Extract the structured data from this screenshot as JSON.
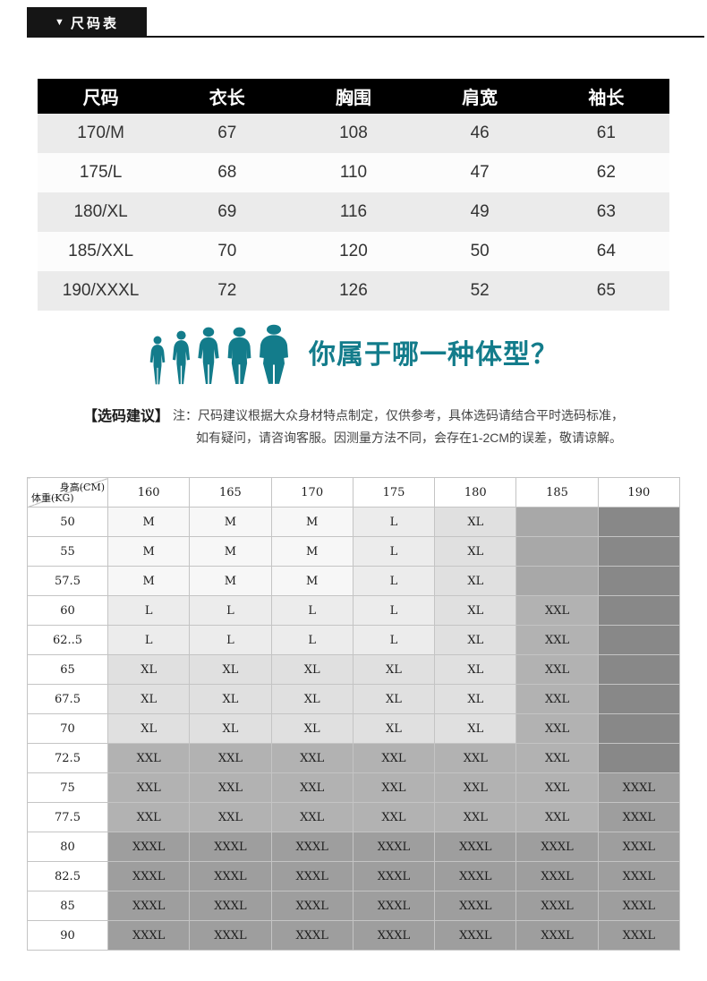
{
  "header": {
    "icon": "▼",
    "title": "尺码表"
  },
  "size_table": {
    "columns": [
      "尺码",
      "衣长",
      "胸围",
      "肩宽",
      "袖长"
    ],
    "rows": [
      [
        "170/M",
        "67",
        "108",
        "46",
        "61"
      ],
      [
        "175/L",
        "68",
        "110",
        "47",
        "62"
      ],
      [
        "180/XL",
        "69",
        "116",
        "49",
        "63"
      ],
      [
        "185/XXL",
        "70",
        "120",
        "50",
        "64"
      ],
      [
        "190/XXXL",
        "72",
        "126",
        "52",
        "65"
      ]
    ]
  },
  "body_type": {
    "question": "你属于哪一种体型？"
  },
  "advice": {
    "label": "【选码建议】",
    "line1": "注：尺码建议根据大众身材特点制定，仅供参考，具体选码请结合平时选码标准，",
    "line2": "如有疑问，请咨询客服。因测量方法不同，会存在1-2CM的误差，敬请谅解。"
  },
  "matrix": {
    "corner_top": "身高(CM)",
    "corner_bottom": "体重(KG)",
    "heights": [
      "160",
      "165",
      "170",
      "175",
      "180",
      "185",
      "190"
    ],
    "weights": [
      "50",
      "55",
      "57.5",
      "60",
      "62..5",
      "65",
      "67.5",
      "70",
      "72.5",
      "75",
      "77.5",
      "80",
      "82.5",
      "85",
      "90"
    ],
    "cells": [
      [
        "M",
        "M",
        "M",
        "L",
        "XL",
        "",
        ""
      ],
      [
        "M",
        "M",
        "M",
        "L",
        "XL",
        "",
        ""
      ],
      [
        "M",
        "M",
        "M",
        "L",
        "XL",
        "",
        ""
      ],
      [
        "L",
        "L",
        "L",
        "L",
        "XL",
        "XXL",
        ""
      ],
      [
        "L",
        "L",
        "L",
        "L",
        "XL",
        "XXL",
        ""
      ],
      [
        "XL",
        "XL",
        "XL",
        "XL",
        "XL",
        "XXL",
        ""
      ],
      [
        "XL",
        "XL",
        "XL",
        "XL",
        "XL",
        "XXL",
        ""
      ],
      [
        "XL",
        "XL",
        "XL",
        "XL",
        "XL",
        "XXL",
        ""
      ],
      [
        "XXL",
        "XXL",
        "XXL",
        "XXL",
        "XXL",
        "XXL",
        ""
      ],
      [
        "XXL",
        "XXL",
        "XXL",
        "XXL",
        "XXL",
        "XXL",
        "XXXL"
      ],
      [
        "XXL",
        "XXL",
        "XXL",
        "XXL",
        "XXL",
        "XXL",
        "XXXL"
      ],
      [
        "XXXL",
        "XXXL",
        "XXXL",
        "XXXL",
        "XXXL",
        "XXXL",
        "XXXL"
      ],
      [
        "XXXL",
        "XXXL",
        "XXXL",
        "XXXL",
        "XXXL",
        "XXXL",
        "XXXL"
      ],
      [
        "XXXL",
        "XXXL",
        "XXXL",
        "XXXL",
        "XXXL",
        "XXXL",
        "XXXL"
      ],
      [
        "XXXL",
        "XXXL",
        "XXXL",
        "XXXL",
        "XXXL",
        "XXXL",
        "XXXL"
      ]
    ],
    "colors": {
      "M": "#f7f7f7",
      "L": "#ececec",
      "XL": "#e0e0e0",
      "XXL": "#b2b2b2",
      "XXXL": "#9e9e9e",
      "empty_mid": "#a8a8a8",
      "empty_dark": "#888888"
    }
  },
  "theme": {
    "accent_teal": "#137c8b",
    "header_black": "#151515"
  }
}
